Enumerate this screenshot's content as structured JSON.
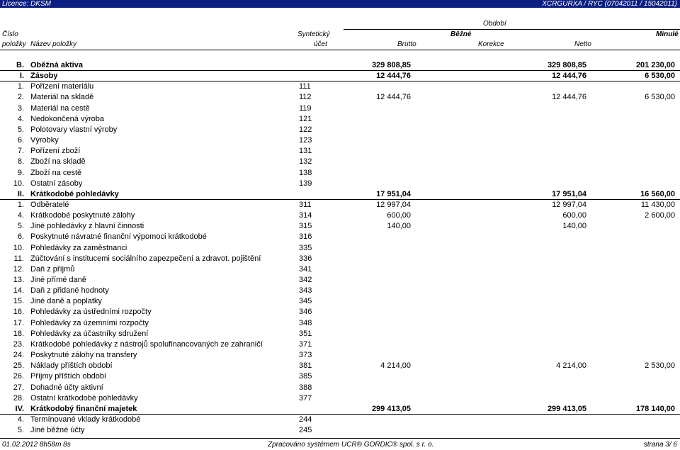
{
  "topbar": {
    "licence": "Licence: DKSM",
    "report": "XCRGURXA / RYC  (07042011 / 15042011)"
  },
  "header": {
    "obdobi": "Období",
    "cislo": "Číslo",
    "syntheticky": "Syntetický",
    "bezne": "Běžné",
    "minule": "Minulé",
    "polozky": "položky",
    "nazev": "Název položky",
    "ucet": "účet",
    "brutto": "Brutto",
    "korekce": "Korekce",
    "netto": "Netto"
  },
  "rows": [
    {
      "sec": "B.",
      "name": "Oběžná aktiva",
      "acct": "",
      "brutto": "329 808,85",
      "netto": "329 808,85",
      "minule": "201 230,00",
      "bold": true
    },
    {
      "sec": "I.",
      "name": "Zásoby",
      "acct": "",
      "brutto": "12 444,76",
      "netto": "12 444,76",
      "minule": "6 530,00",
      "bold": true
    },
    {
      "sec": "1.",
      "name": "Pořízení materiálu",
      "acct": "111",
      "brutto": "",
      "netto": "",
      "minule": ""
    },
    {
      "sec": "2.",
      "name": "Materiál na skladě",
      "acct": "112",
      "brutto": "12 444,76",
      "netto": "12 444,76",
      "minule": "6 530,00"
    },
    {
      "sec": "3.",
      "name": "Materiál na cestě",
      "acct": "119",
      "brutto": "",
      "netto": "",
      "minule": ""
    },
    {
      "sec": "4.",
      "name": "Nedokončená výroba",
      "acct": "121",
      "brutto": "",
      "netto": "",
      "minule": ""
    },
    {
      "sec": "5.",
      "name": "Polotovary vlastní výroby",
      "acct": "122",
      "brutto": "",
      "netto": "",
      "minule": ""
    },
    {
      "sec": "6.",
      "name": "Výrobky",
      "acct": "123",
      "brutto": "",
      "netto": "",
      "minule": ""
    },
    {
      "sec": "7.",
      "name": "Pořízení zboží",
      "acct": "131",
      "brutto": "",
      "netto": "",
      "minule": ""
    },
    {
      "sec": "8.",
      "name": "Zboží na skladě",
      "acct": "132",
      "brutto": "",
      "netto": "",
      "minule": ""
    },
    {
      "sec": "9.",
      "name": "Zboží na cestě",
      "acct": "138",
      "brutto": "",
      "netto": "",
      "minule": ""
    },
    {
      "sec": "10.",
      "name": "Ostatní zásoby",
      "acct": "139",
      "brutto": "",
      "netto": "",
      "minule": ""
    },
    {
      "sec": "II.",
      "name": "Krátkodobé pohledávky",
      "acct": "",
      "brutto": "17 951,04",
      "netto": "17 951,04",
      "minule": "16 560,00",
      "bold": true
    },
    {
      "sec": "1.",
      "name": "Odběratelé",
      "acct": "311",
      "brutto": "12 997,04",
      "netto": "12 997,04",
      "minule": "11 430,00"
    },
    {
      "sec": "4.",
      "name": "Krátkodobé poskytnuté zálohy",
      "acct": "314",
      "brutto": "600,00",
      "netto": "600,00",
      "minule": "2 600,00"
    },
    {
      "sec": "5.",
      "name": "Jiné pohledávky z hlavní činnosti",
      "acct": "315",
      "brutto": "140,00",
      "netto": "140,00",
      "minule": ""
    },
    {
      "sec": "6.",
      "name": "Poskytnuté návratné finanční výpomoci krátkodobé",
      "acct": "316",
      "brutto": "",
      "netto": "",
      "minule": ""
    },
    {
      "sec": "10.",
      "name": "Pohledávky za zaměstnanci",
      "acct": "335",
      "brutto": "",
      "netto": "",
      "minule": ""
    },
    {
      "sec": "11.",
      "name": "Zúčtování s institucemi sociálního zapezpečení a zdravot. pojištění",
      "acct": "336",
      "brutto": "",
      "netto": "",
      "minule": ""
    },
    {
      "sec": "12.",
      "name": "Daň z příjmů",
      "acct": "341",
      "brutto": "",
      "netto": "",
      "minule": ""
    },
    {
      "sec": "13.",
      "name": "Jiné přímé daně",
      "acct": "342",
      "brutto": "",
      "netto": "",
      "minule": ""
    },
    {
      "sec": "14.",
      "name": "Daň z přidané hodnoty",
      "acct": "343",
      "brutto": "",
      "netto": "",
      "minule": ""
    },
    {
      "sec": "15.",
      "name": "Jiné daně a poplatky",
      "acct": "345",
      "brutto": "",
      "netto": "",
      "minule": ""
    },
    {
      "sec": "16.",
      "name": "Pohledávky za ústředními rozpočty",
      "acct": "346",
      "brutto": "",
      "netto": "",
      "minule": ""
    },
    {
      "sec": "17.",
      "name": "Pohledávky za územními rozpočty",
      "acct": "348",
      "brutto": "",
      "netto": "",
      "minule": ""
    },
    {
      "sec": "18.",
      "name": "Pohledávky za účastníky sdružení",
      "acct": "351",
      "brutto": "",
      "netto": "",
      "minule": ""
    },
    {
      "sec": "23.",
      "name": "Krátkodobé pohledávky z nástrojů spolufinancovaných ze zahraničí",
      "acct": "371",
      "brutto": "",
      "netto": "",
      "minule": ""
    },
    {
      "sec": "24.",
      "name": "Poskytnuté zálohy na transfery",
      "acct": "373",
      "brutto": "",
      "netto": "",
      "minule": ""
    },
    {
      "sec": "25.",
      "name": "Náklady příštích období",
      "acct": "381",
      "brutto": "4 214,00",
      "netto": "4 214,00",
      "minule": "2 530,00"
    },
    {
      "sec": "26.",
      "name": "Příjmy příštích období",
      "acct": "385",
      "brutto": "",
      "netto": "",
      "minule": ""
    },
    {
      "sec": "27.",
      "name": "Dohadné účty aktivní",
      "acct": "388",
      "brutto": "",
      "netto": "",
      "minule": ""
    },
    {
      "sec": "28.",
      "name": "Ostatní krátkodobé pohledávky",
      "acct": "377",
      "brutto": "",
      "netto": "",
      "minule": ""
    },
    {
      "sec": "IV.",
      "name": "Krátkodobý finanční majetek",
      "acct": "",
      "brutto": "299 413,05",
      "netto": "299 413,05",
      "minule": "178 140,00",
      "bold": true
    },
    {
      "sec": "4.",
      "name": "Termínované vklady krátkodobé",
      "acct": "244",
      "brutto": "",
      "netto": "",
      "minule": ""
    },
    {
      "sec": "5.",
      "name": "Jiné běžné účty",
      "acct": "245",
      "brutto": "",
      "netto": "",
      "minule": ""
    }
  ],
  "footer": {
    "timestamp": "01.02.2012 8h58m 8s",
    "system": "Zpracováno systémem UCR® GORDIC® spol. s  r. o.",
    "page": "strana  3/ 6"
  }
}
